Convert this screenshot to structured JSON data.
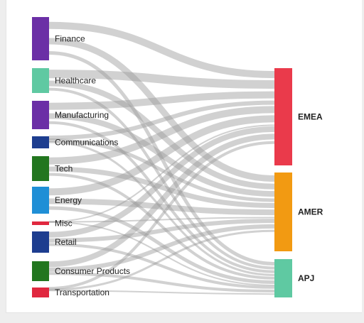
{
  "diagram": {
    "type": "sankey",
    "sources": [
      {
        "label": "Finance",
        "color": "#6b2fa6"
      },
      {
        "label": "Healthcare",
        "color": "#5fc9a2"
      },
      {
        "label": "Manufacturing",
        "color": "#6b2fa6"
      },
      {
        "label": "Communications",
        "color": "#1d3d8f"
      },
      {
        "label": "Tech",
        "color": "#22761f"
      },
      {
        "label": "Energy",
        "color": "#1f8fd6"
      },
      {
        "label": "Misc",
        "color": "#e0283f"
      },
      {
        "label": "Retail",
        "color": "#1d3d8f"
      },
      {
        "label": "Consumer Products",
        "color": "#22761f"
      },
      {
        "label": "Transportation",
        "color": "#e0283f"
      }
    ],
    "targets": [
      {
        "label": "EMEA",
        "color": "#ea3a4b"
      },
      {
        "label": "AMER",
        "color": "#f29a12"
      },
      {
        "label": "APJ",
        "color": "#5fc9a2"
      }
    ],
    "link_color": "#9a9a9a"
  }
}
